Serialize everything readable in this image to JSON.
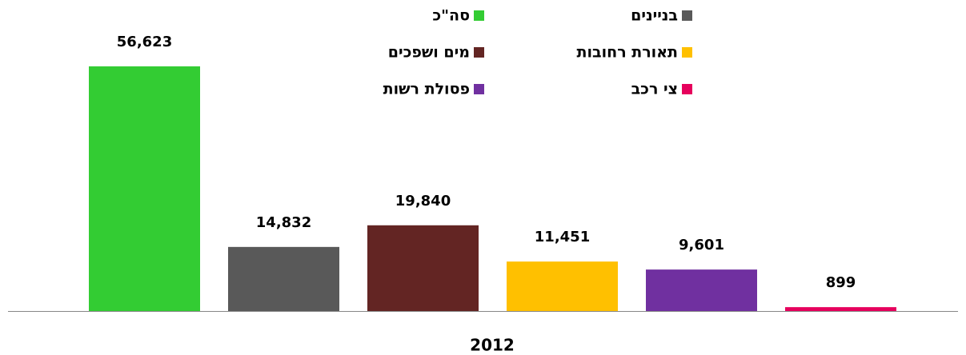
{
  "chart_data": {
    "type": "bar",
    "categories": [
      "2012"
    ],
    "series": [
      {
        "name": "סה\"כ",
        "color": "#33cc33",
        "values": [
          56623
        ],
        "value_labels": [
          "56,623"
        ]
      },
      {
        "name": "בניינים",
        "color": "#595959",
        "values": [
          14832
        ],
        "value_labels": [
          "14,832"
        ]
      },
      {
        "name": "מים ושפכים",
        "color": "#632523",
        "values": [
          19840
        ],
        "value_labels": [
          "19,840"
        ]
      },
      {
        "name": "תאורת רחובות",
        "color": "#ffc000",
        "values": [
          11451
        ],
        "value_labels": [
          "11,451"
        ]
      },
      {
        "name": "פסולת רשות",
        "color": "#7030a0",
        "values": [
          9601
        ],
        "value_labels": [
          "9,601"
        ]
      },
      {
        "name": "צי רכב",
        "color": "#e6005c",
        "values": [
          899
        ],
        "value_labels": [
          "899"
        ]
      }
    ],
    "legend": "top"
  }
}
